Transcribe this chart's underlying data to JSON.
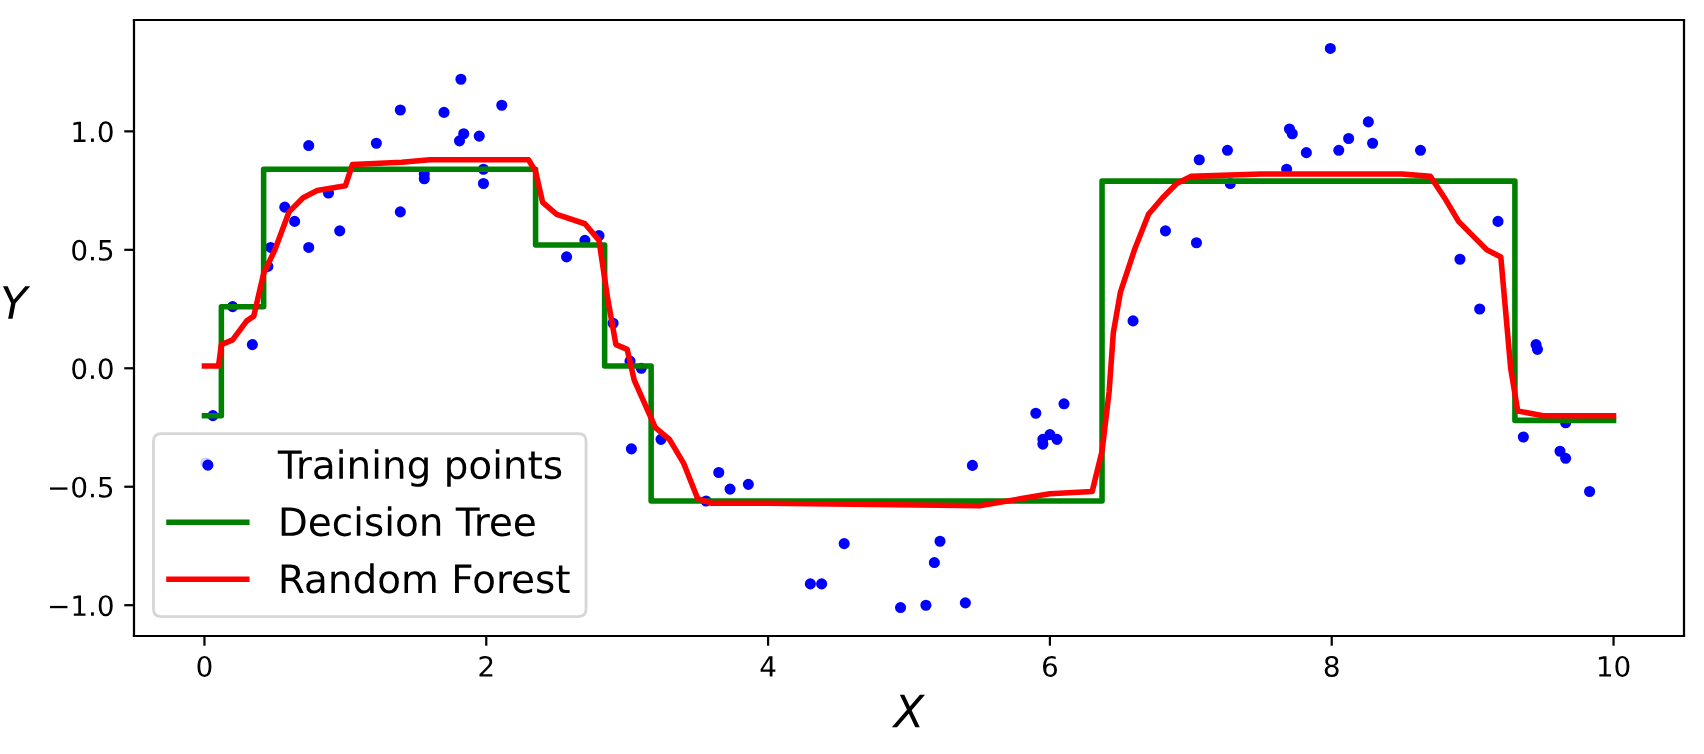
{
  "chart_data": {
    "type": "scatter",
    "xlabel": "X",
    "ylabel": "Y",
    "xlim": [
      -0.5,
      10.5
    ],
    "ylim": [
      -1.13,
      1.47
    ],
    "xticks": [
      0,
      2,
      4,
      6,
      8,
      10
    ],
    "yticks": [
      {
        "value": -1.0,
        "label": "−1.0"
      },
      {
        "value": -0.5,
        "label": "−0.5"
      },
      {
        "value": 0.0,
        "label": "0.0"
      },
      {
        "value": 0.5,
        "label": "0.5"
      },
      {
        "value": 1.0,
        "label": "1.0"
      }
    ],
    "grid": false,
    "legend": "bottom left",
    "series": [
      {
        "name": "Training points",
        "color": "#0000ff",
        "marker": "circle",
        "x": [
          0.01,
          0.06,
          0.2,
          0.34,
          0.45,
          0.47,
          0.57,
          0.64,
          0.74,
          0.74,
          0.88,
          0.96,
          1.22,
          1.39,
          1.39,
          1.56,
          1.56,
          1.7,
          1.81,
          1.84,
          1.82,
          1.95,
          1.98,
          1.98,
          2.11,
          2.57,
          2.7,
          2.8,
          2.9,
          3.02,
          3.1,
          3.03,
          3.24,
          3.56,
          3.65,
          3.73,
          3.86,
          4.3,
          4.38,
          4.54,
          4.94,
          5.12,
          5.18,
          5.22,
          5.4,
          5.45,
          5.9,
          5.95,
          5.95,
          6.0,
          6.05,
          6.1,
          6.59,
          6.82,
          7.04,
          7.06,
          7.26,
          7.28,
          7.68,
          7.7,
          7.72,
          7.82,
          7.99,
          8.05,
          8.12,
          8.26,
          8.29,
          8.63,
          8.91,
          9.05,
          9.18,
          9.36,
          9.45,
          9.46,
          9.62,
          9.66,
          9.66,
          9.83
        ],
        "values": [
          -0.4,
          -0.2,
          0.26,
          0.1,
          0.43,
          0.51,
          0.68,
          0.62,
          0.94,
          0.51,
          0.74,
          0.58,
          0.95,
          1.09,
          0.66,
          0.82,
          0.8,
          1.08,
          0.96,
          0.99,
          1.22,
          0.98,
          0.84,
          0.78,
          1.11,
          0.47,
          0.54,
          0.56,
          0.19,
          0.03,
          0.0,
          -0.34,
          -0.3,
          -0.56,
          -0.44,
          -0.51,
          -0.49,
          -0.91,
          -0.91,
          -0.74,
          -1.01,
          -1.0,
          -0.82,
          -0.73,
          -0.99,
          -0.41,
          -0.19,
          -0.32,
          -0.3,
          -0.28,
          -0.3,
          -0.15,
          0.2,
          0.58,
          0.53,
          0.88,
          0.92,
          0.78,
          0.84,
          1.01,
          0.99,
          0.91,
          1.35,
          0.92,
          0.97,
          1.04,
          0.95,
          0.92,
          0.46,
          0.25,
          0.62,
          -0.29,
          0.1,
          0.08,
          -0.35,
          -0.23,
          -0.38,
          -0.52
        ]
      },
      {
        "name": "Decision Tree",
        "type": "step",
        "color": "#008000",
        "line_style": "solid",
        "x": [
          0,
          0.12,
          0.42,
          2.35,
          2.84,
          3.17,
          6.37,
          9.3,
          10
        ],
        "values": [
          -0.2,
          0.26,
          0.84,
          0.52,
          0.01,
          -0.56,
          0.79,
          -0.22,
          -0.22
        ]
      },
      {
        "name": "Random Forest",
        "type": "line",
        "color": "#ff0000",
        "line_style": "solid",
        "x": [
          0,
          0.1,
          0.12,
          0.2,
          0.3,
          0.35,
          0.42,
          0.5,
          0.6,
          0.7,
          0.8,
          1.0,
          1.05,
          1.4,
          1.6,
          2.3,
          2.35,
          2.4,
          2.5,
          2.7,
          2.8,
          2.86,
          2.92,
          3.0,
          3.05,
          3.2,
          3.3,
          3.4,
          3.5,
          3.6,
          4.0,
          5.5,
          5.8,
          6.0,
          6.3,
          6.37,
          6.42,
          6.45,
          6.5,
          6.6,
          6.7,
          6.8,
          6.9,
          7.0,
          7.5,
          8.0,
          8.5,
          8.7,
          8.8,
          8.9,
          9.0,
          9.1,
          9.2,
          9.27,
          9.32,
          9.5,
          10
        ],
        "values": [
          0.01,
          0.01,
          0.1,
          0.12,
          0.2,
          0.22,
          0.4,
          0.5,
          0.66,
          0.72,
          0.75,
          0.77,
          0.86,
          0.87,
          0.88,
          0.88,
          0.83,
          0.7,
          0.65,
          0.61,
          0.54,
          0.3,
          0.1,
          0.08,
          -0.05,
          -0.25,
          -0.3,
          -0.4,
          -0.55,
          -0.57,
          -0.57,
          -0.58,
          -0.55,
          -0.53,
          -0.52,
          -0.35,
          -0.1,
          0.15,
          0.32,
          0.5,
          0.65,
          0.72,
          0.78,
          0.81,
          0.82,
          0.82,
          0.82,
          0.81,
          0.72,
          0.62,
          0.56,
          0.5,
          0.47,
          0.0,
          -0.18,
          -0.2,
          -0.2
        ]
      }
    ]
  }
}
